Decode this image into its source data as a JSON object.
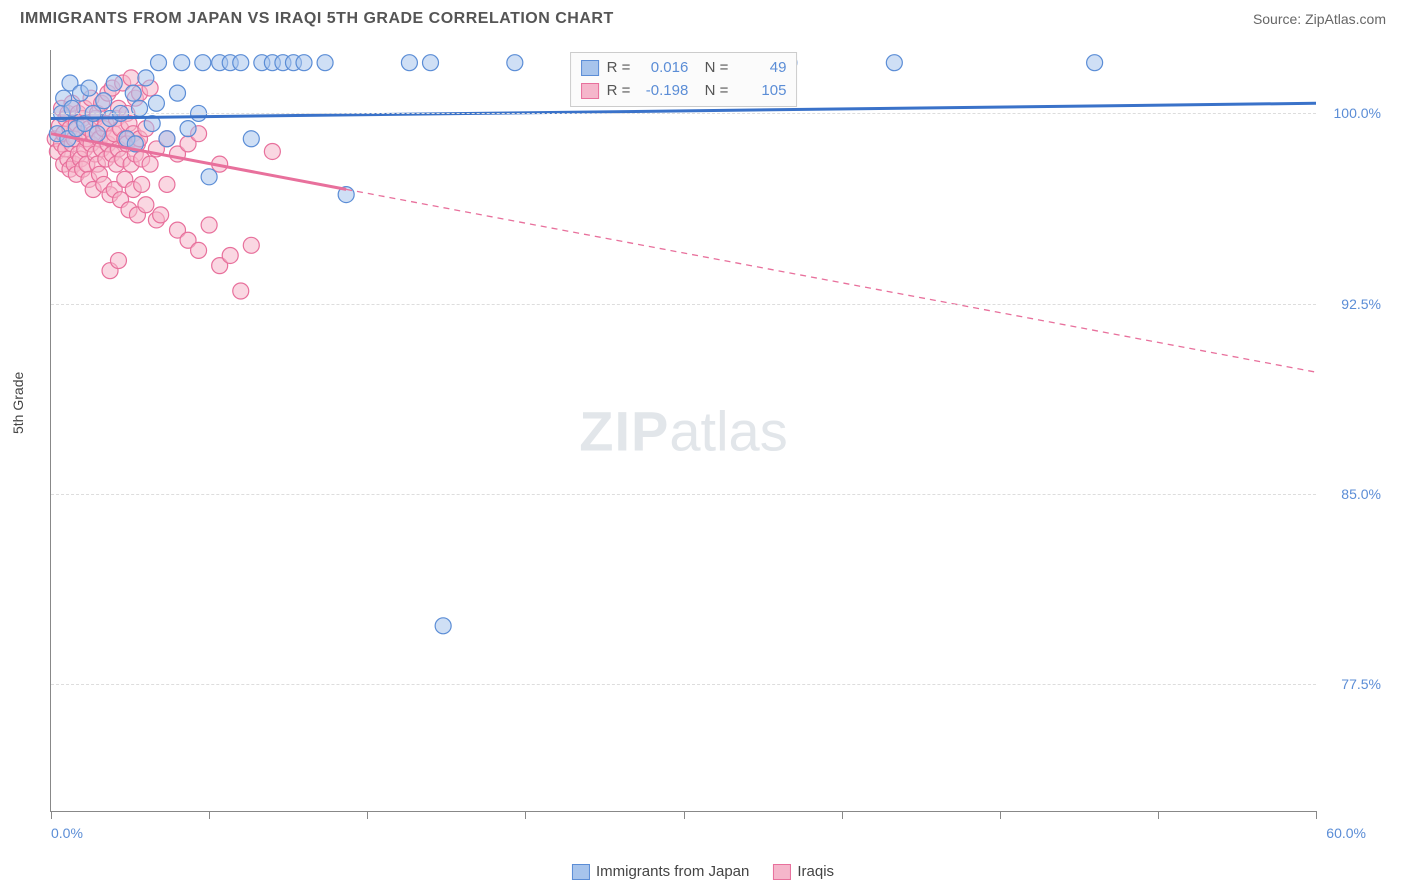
{
  "header": {
    "title": "IMMIGRANTS FROM JAPAN VS IRAQI 5TH GRADE CORRELATION CHART",
    "source_prefix": "Source: ",
    "source_name": "ZipAtlas.com"
  },
  "chart": {
    "type": "scatter",
    "xlim": [
      0,
      60
    ],
    "ylim": [
      72.5,
      102.5
    ],
    "x_axis_label_left": "0.0%",
    "x_axis_label_right": "60.0%",
    "y_axis_title": "5th Grade",
    "y_ticks": [
      {
        "value": 100.0,
        "label": "100.0%"
      },
      {
        "value": 92.5,
        "label": "92.5%"
      },
      {
        "value": 85.0,
        "label": "85.0%"
      },
      {
        "value": 77.5,
        "label": "77.5%"
      }
    ],
    "x_tick_positions": [
      0,
      7.5,
      15,
      22.5,
      30,
      37.5,
      45,
      52.5,
      60
    ],
    "grid_color": "#dddddd",
    "background_color": "#ffffff",
    "watermark": {
      "zip": "ZIP",
      "atlas": "atlas"
    },
    "series": [
      {
        "name": "Immigrants from Japan",
        "marker_fill": "#a7c4ec",
        "marker_stroke": "#5b8dd6",
        "line_color": "#3a72c9",
        "line_width": 3,
        "line_dash_after_x": null,
        "regression": {
          "x1": 0,
          "y1": 99.8,
          "x2": 60,
          "y2": 100.4
        },
        "R": "0.016",
        "N": "49",
        "points": [
          [
            0.3,
            99.2
          ],
          [
            0.5,
            100.0
          ],
          [
            0.6,
            100.6
          ],
          [
            0.8,
            99.0
          ],
          [
            0.9,
            101.2
          ],
          [
            1.0,
            100.2
          ],
          [
            1.2,
            99.4
          ],
          [
            1.4,
            100.8
          ],
          [
            1.6,
            99.6
          ],
          [
            1.8,
            101.0
          ],
          [
            2.0,
            100.0
          ],
          [
            2.2,
            99.2
          ],
          [
            2.5,
            100.5
          ],
          [
            2.8,
            99.8
          ],
          [
            3.0,
            101.2
          ],
          [
            3.3,
            100.0
          ],
          [
            3.6,
            99.0
          ],
          [
            3.9,
            100.8
          ],
          [
            4.0,
            98.8
          ],
          [
            4.2,
            100.2
          ],
          [
            4.5,
            101.4
          ],
          [
            4.8,
            99.6
          ],
          [
            5.0,
            100.4
          ],
          [
            5.1,
            102.0
          ],
          [
            5.5,
            99.0
          ],
          [
            6.0,
            100.8
          ],
          [
            6.2,
            102.0
          ],
          [
            6.5,
            99.4
          ],
          [
            7.0,
            100.0
          ],
          [
            7.2,
            102.0
          ],
          [
            7.5,
            97.5
          ],
          [
            8.0,
            102.0
          ],
          [
            8.5,
            102.0
          ],
          [
            9.0,
            102.0
          ],
          [
            9.5,
            99.0
          ],
          [
            10.0,
            102.0
          ],
          [
            10.5,
            102.0
          ],
          [
            11.0,
            102.0
          ],
          [
            11.5,
            102.0
          ],
          [
            12.0,
            102.0
          ],
          [
            13.0,
            102.0
          ],
          [
            14.0,
            96.8
          ],
          [
            17.0,
            102.0
          ],
          [
            18.0,
            102.0
          ],
          [
            18.6,
            79.8
          ],
          [
            22.0,
            102.0
          ],
          [
            35.0,
            102.0
          ],
          [
            40.0,
            102.0
          ],
          [
            49.5,
            102.0
          ]
        ]
      },
      {
        "name": "Iraqis",
        "marker_fill": "#f5b6cb",
        "marker_stroke": "#e8709c",
        "line_color": "#e8709c",
        "line_width": 3,
        "line_dash_after_x": 14,
        "regression": {
          "x1": 0,
          "y1": 99.2,
          "x2": 60,
          "y2": 89.8
        },
        "R": "-0.198",
        "N": "105",
        "points": [
          [
            0.2,
            99.0
          ],
          [
            0.3,
            98.5
          ],
          [
            0.4,
            99.5
          ],
          [
            0.5,
            98.8
          ],
          [
            0.5,
            100.2
          ],
          [
            0.6,
            99.2
          ],
          [
            0.6,
            98.0
          ],
          [
            0.7,
            99.8
          ],
          [
            0.7,
            98.6
          ],
          [
            0.8,
            100.0
          ],
          [
            0.8,
            98.2
          ],
          [
            0.9,
            99.4
          ],
          [
            0.9,
            97.8
          ],
          [
            1.0,
            98.8
          ],
          [
            1.0,
            100.4
          ],
          [
            1.1,
            99.0
          ],
          [
            1.1,
            98.0
          ],
          [
            1.2,
            99.6
          ],
          [
            1.2,
            97.6
          ],
          [
            1.3,
            98.4
          ],
          [
            1.3,
            100.0
          ],
          [
            1.4,
            99.2
          ],
          [
            1.4,
            98.2
          ],
          [
            1.5,
            99.8
          ],
          [
            1.5,
            97.8
          ],
          [
            1.6,
            98.6
          ],
          [
            1.6,
            100.2
          ],
          [
            1.7,
            99.0
          ],
          [
            1.7,
            98.0
          ],
          [
            1.8,
            99.4
          ],
          [
            1.8,
            97.4
          ],
          [
            1.9,
            98.8
          ],
          [
            1.9,
            100.6
          ],
          [
            2.0,
            99.2
          ],
          [
            2.0,
            97.0
          ],
          [
            2.1,
            98.4
          ],
          [
            2.1,
            99.8
          ],
          [
            2.2,
            98.0
          ],
          [
            2.2,
            100.0
          ],
          [
            2.3,
            99.0
          ],
          [
            2.3,
            97.6
          ],
          [
            2.4,
            98.6
          ],
          [
            2.4,
            100.4
          ],
          [
            2.5,
            99.4
          ],
          [
            2.5,
            97.2
          ],
          [
            2.6,
            98.2
          ],
          [
            2.6,
            99.6
          ],
          [
            2.7,
            98.8
          ],
          [
            2.7,
            100.8
          ],
          [
            2.8,
            99.0
          ],
          [
            2.8,
            96.8
          ],
          [
            2.9,
            98.4
          ],
          [
            2.9,
            101.0
          ],
          [
            3.0,
            99.2
          ],
          [
            3.0,
            97.0
          ],
          [
            3.1,
            98.0
          ],
          [
            3.1,
            99.8
          ],
          [
            3.2,
            98.6
          ],
          [
            3.2,
            100.2
          ],
          [
            3.3,
            99.4
          ],
          [
            3.3,
            96.6
          ],
          [
            3.4,
            98.2
          ],
          [
            3.4,
            101.2
          ],
          [
            3.5,
            99.0
          ],
          [
            3.5,
            97.4
          ],
          [
            3.6,
            98.8
          ],
          [
            3.6,
            100.0
          ],
          [
            3.7,
            99.6
          ],
          [
            3.7,
            96.2
          ],
          [
            3.8,
            98.0
          ],
          [
            3.8,
            101.4
          ],
          [
            3.9,
            99.2
          ],
          [
            3.9,
            97.0
          ],
          [
            4.0,
            98.4
          ],
          [
            4.0,
            100.6
          ],
          [
            4.1,
            98.8
          ],
          [
            4.1,
            96.0
          ],
          [
            4.2,
            99.0
          ],
          [
            4.2,
            100.8
          ],
          [
            4.3,
            98.2
          ],
          [
            4.3,
            97.2
          ],
          [
            4.5,
            99.4
          ],
          [
            4.5,
            96.4
          ],
          [
            4.7,
            98.0
          ],
          [
            4.7,
            101.0
          ],
          [
            5.0,
            98.6
          ],
          [
            5.0,
            95.8
          ],
          [
            5.2,
            96.0
          ],
          [
            5.5,
            97.2
          ],
          [
            5.5,
            99.0
          ],
          [
            6.0,
            98.4
          ],
          [
            6.0,
            95.4
          ],
          [
            6.5,
            95.0
          ],
          [
            6.5,
            98.8
          ],
          [
            7.0,
            94.6
          ],
          [
            7.0,
            99.2
          ],
          [
            7.5,
            95.6
          ],
          [
            8.0,
            94.0
          ],
          [
            8.0,
            98.0
          ],
          [
            8.5,
            94.4
          ],
          [
            9.0,
            93.0
          ],
          [
            9.5,
            94.8
          ],
          [
            10.5,
            98.5
          ],
          [
            2.8,
            93.8
          ],
          [
            3.2,
            94.2
          ]
        ]
      }
    ],
    "bottom_legend": [
      {
        "label": "Immigrants from Japan",
        "fill": "#a7c4ec",
        "stroke": "#5b8dd6"
      },
      {
        "label": "Iraqis",
        "fill": "#f5b6cb",
        "stroke": "#e8709c"
      }
    ]
  }
}
